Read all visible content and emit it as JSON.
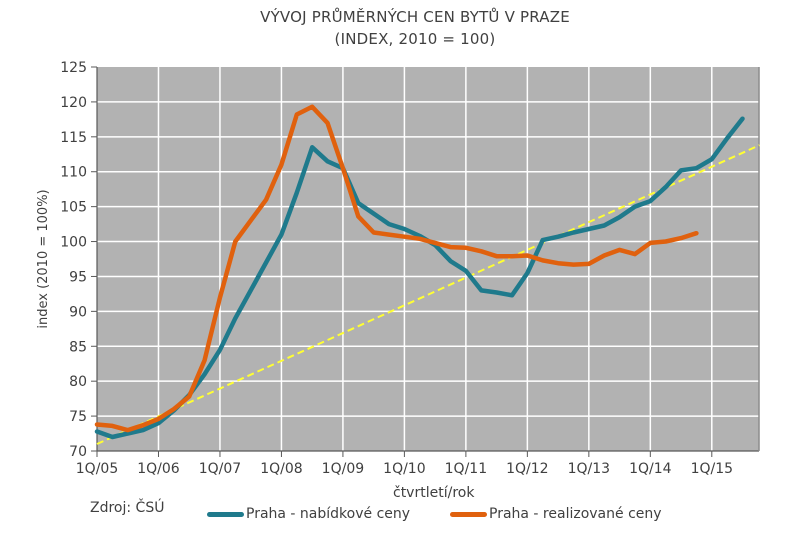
{
  "header": {
    "title_line1": "VÝVOJ PRŮMĚRNÝCH  CEN BYTŮ V PRAZE",
    "title_line2": "(INDEX,  2010 = 100)"
  },
  "axes": {
    "ylabel": "index (2010 = 100%)",
    "xlabel": "čtvrtletí/rok",
    "yticks": [
      "70",
      "75",
      "80",
      "85",
      "90",
      "95",
      "100",
      "105",
      "110",
      "115",
      "120",
      "125"
    ],
    "xticks": [
      "1Q/05",
      "1Q/06",
      "1Q/07",
      "1Q/08",
      "1Q/09",
      "1Q/10",
      "1Q/11",
      "1Q/12",
      "1Q/13",
      "1Q/14",
      "1Q/15"
    ]
  },
  "source": "Zdroj: ČSÚ",
  "legend": [
    {
      "label": "Praha - nabídkové ceny",
      "color": "#1f7a8c"
    },
    {
      "label": "Praha - realizované ceny",
      "color": "#e0610e"
    }
  ],
  "colors": {
    "plot_bg": "#b2b2b2",
    "grid": "#ffffff",
    "trend": "#ffff33",
    "offer": "#1f7a8c",
    "realized": "#e0610e"
  },
  "chart_data": {
    "type": "line",
    "title": "VÝVOJ PRŮMĚRNÝCH CEN BYTŮ V PRAZE (INDEX, 2010 = 100)",
    "xlabel": "čtvrtletí/rok",
    "ylabel": "index (2010 = 100%)",
    "ylim": [
      70,
      125
    ],
    "x_ticks": [
      "1Q/05",
      "1Q/06",
      "1Q/07",
      "1Q/08",
      "1Q/09",
      "1Q/10",
      "1Q/11",
      "1Q/12",
      "1Q/13",
      "1Q/14",
      "1Q/15"
    ],
    "x_unit": "quarters since 1Q/05",
    "grid": true,
    "legend_position": "bottom",
    "series": [
      {
        "name": "Praha - nabídkové ceny",
        "color": "#1f7a8c",
        "values": [
          72.8,
          72.0,
          72.5,
          73.0,
          74.0,
          75.8,
          78.0,
          81.0,
          84.5,
          89.0,
          93.0,
          97.0,
          101.0,
          107.0,
          113.5,
          111.5,
          110.5,
          105.5,
          104.0,
          102.5,
          101.8,
          100.8,
          99.5,
          97.2,
          95.8,
          93.0,
          92.7,
          92.3,
          95.5,
          100.2,
          100.7,
          101.3,
          101.8,
          102.3,
          103.5,
          105.0,
          105.8,
          107.8,
          110.2,
          110.5,
          111.8,
          114.8,
          117.6
        ]
      },
      {
        "name": "Praha - realizované ceny",
        "color": "#e0610e",
        "values": [
          73.8,
          73.6,
          73.0,
          73.7,
          74.6,
          76.0,
          77.8,
          83.0,
          92.0,
          100.0,
          103.0,
          106.0,
          111.0,
          118.2,
          119.3,
          117.0,
          110.5,
          103.6,
          101.3,
          101.0,
          100.7,
          100.4,
          99.8,
          99.2,
          99.1,
          98.6,
          97.9,
          97.9,
          98.0,
          97.3,
          96.9,
          96.7,
          96.8,
          98.0,
          98.8,
          98.2,
          99.8,
          100.0,
          100.5,
          101.2
        ]
      },
      {
        "name": "trend (linear, dashed)",
        "color": "#ffff33",
        "values_endpoints": {
          "start": [
            0,
            71.0
          ],
          "end": [
            43.1,
            113.8
          ]
        }
      }
    ]
  }
}
